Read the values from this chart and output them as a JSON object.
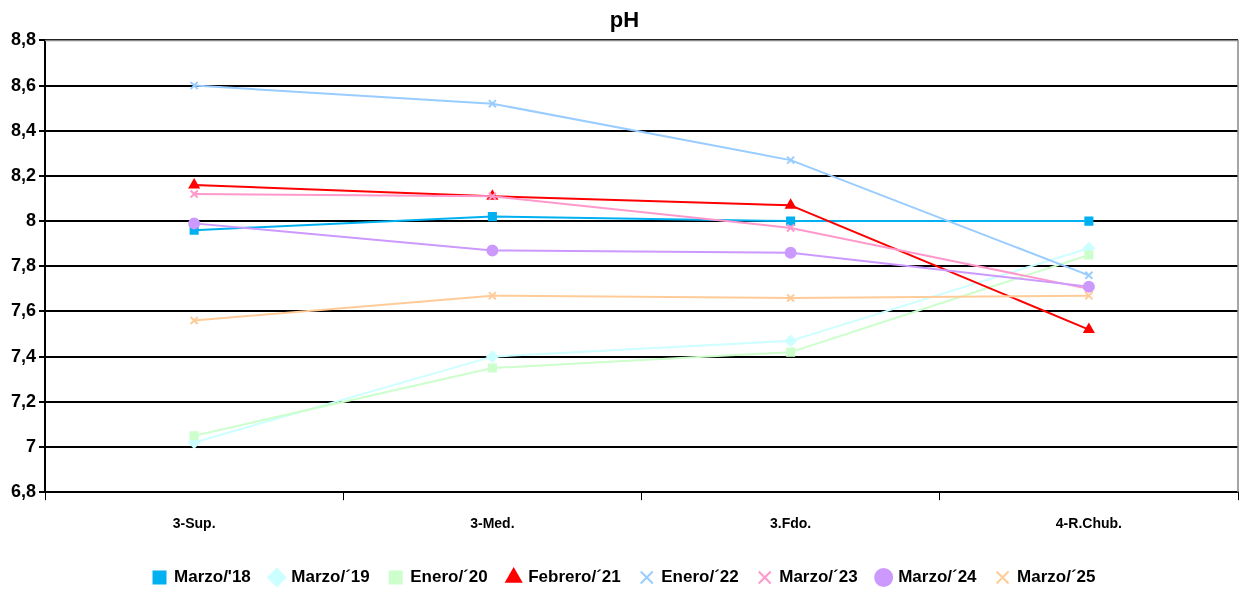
{
  "chart_data": {
    "type": "line",
    "title": "pH",
    "categories": [
      "3-Sup.",
      "3-Med.",
      "3.Fdo.",
      "4-R.Chub."
    ],
    "ylim": [
      6.8,
      8.8
    ],
    "yticks": [
      {
        "value": 6.8,
        "label": "6,8"
      },
      7,
      {
        "value": 7.2,
        "label": "7,2"
      },
      {
        "value": 7.4,
        "label": "7,4"
      },
      {
        "value": 7.6,
        "label": "7,6"
      },
      {
        "value": 7.8,
        "label": "7,8"
      },
      8,
      {
        "value": 8.2,
        "label": "8,2"
      },
      {
        "value": 8.4,
        "label": "8,4"
      },
      {
        "value": 8.6,
        "label": "8,6"
      },
      {
        "value": 8.8,
        "label": "8,8"
      }
    ],
    "grid": "y",
    "legend": "bottom",
    "line_style": "solid",
    "series": [
      {
        "name": "Marzo/'18",
        "color": "#00b0f0",
        "marker": "square",
        "values": [
          7.96,
          8.02,
          8.0,
          8.0
        ]
      },
      {
        "name": "Marzo/´19",
        "color": "#ccffff",
        "marker": "diamond",
        "values": [
          7.02,
          7.4,
          7.47,
          7.88
        ]
      },
      {
        "name": "Enero/´20",
        "color": "#ccffcc",
        "marker": "square",
        "values": [
          7.05,
          7.35,
          7.42,
          7.85
        ]
      },
      {
        "name": "Febrero/´21",
        "color": "#ff0000",
        "marker": "triangle",
        "values": [
          8.16,
          8.11,
          8.07,
          7.52
        ]
      },
      {
        "name": "Enero/´22",
        "color": "#99ccff",
        "marker": "cross",
        "values": [
          8.6,
          8.52,
          8.27,
          7.76
        ]
      },
      {
        "name": "Marzo/´23",
        "color": "#ff99cc",
        "marker": "cross",
        "values": [
          8.12,
          8.11,
          7.97,
          7.7
        ]
      },
      {
        "name": "Marzo/´24",
        "color": "#cc99ff",
        "marker": "circle",
        "values": [
          7.99,
          7.87,
          7.86,
          7.71
        ]
      },
      {
        "name": "Marzo/´25",
        "color": "#ffcc99",
        "marker": "cross",
        "values": [
          7.56,
          7.67,
          7.66,
          7.67
        ]
      }
    ]
  }
}
